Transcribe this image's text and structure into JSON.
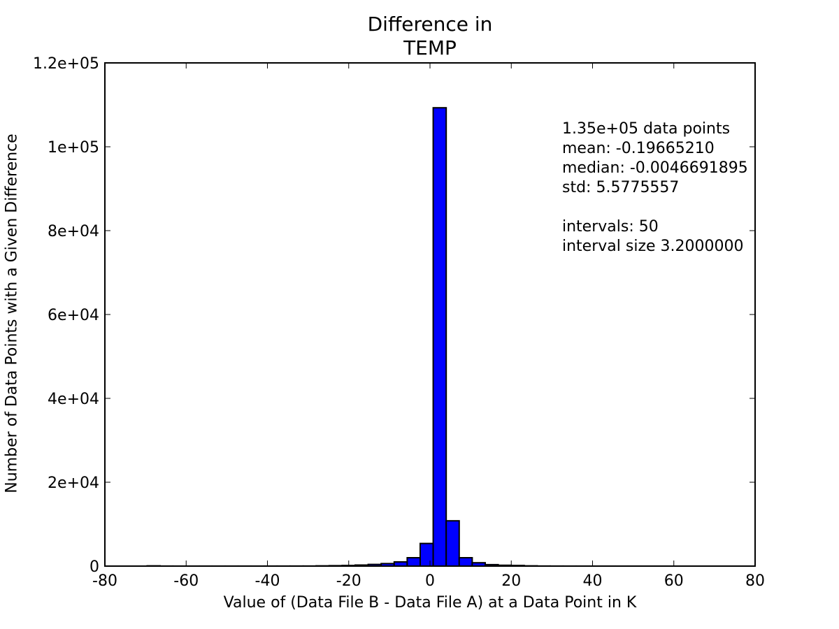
{
  "chart_data": {
    "type": "bar",
    "title": "Difference in\nTEMP",
    "title_lines": [
      "Difference in",
      "TEMP"
    ],
    "xlabel": "Value of (Data File B - Data File A) at a Data Point in K",
    "ylabel": "Number of Data Points with a Given Difference",
    "xlim": [
      -80,
      80
    ],
    "ylim": [
      0,
      120000
    ],
    "xticks": [
      -80,
      -60,
      -40,
      -20,
      0,
      20,
      40,
      60,
      80
    ],
    "xtick_labels": [
      "-80",
      "-60",
      "-40",
      "-20",
      "0",
      "20",
      "40",
      "60",
      "80"
    ],
    "yticks": [
      0,
      20000,
      40000,
      60000,
      80000,
      100000,
      120000
    ],
    "ytick_labels": [
      "0",
      "2e+04",
      "4e+04",
      "6e+04",
      "8e+04",
      "1e+05",
      "1.2e+05"
    ],
    "grid": false,
    "bar_color": "#0000ff",
    "edge_color": "#000000",
    "bin_width": 3.2,
    "bins": [
      {
        "x0": -69.61,
        "count": 60
      },
      {
        "x0": -66.41,
        "count": 10
      },
      {
        "x0": -63.21,
        "count": 5
      },
      {
        "x0": -60.01,
        "count": 5
      },
      {
        "x0": -56.81,
        "count": 5
      },
      {
        "x0": -53.61,
        "count": 5
      },
      {
        "x0": -50.41,
        "count": 5
      },
      {
        "x0": -47.21,
        "count": 5
      },
      {
        "x0": -44.01,
        "count": 5
      },
      {
        "x0": -40.81,
        "count": 10
      },
      {
        "x0": -37.61,
        "count": 10
      },
      {
        "x0": -34.41,
        "count": 15
      },
      {
        "x0": -31.21,
        "count": 20
      },
      {
        "x0": -28.01,
        "count": 60
      },
      {
        "x0": -24.81,
        "count": 100
      },
      {
        "x0": -21.61,
        "count": 150
      },
      {
        "x0": -18.41,
        "count": 250
      },
      {
        "x0": -15.21,
        "count": 400
      },
      {
        "x0": -12.01,
        "count": 600
      },
      {
        "x0": -8.81,
        "count": 1000
      },
      {
        "x0": -5.61,
        "count": 2000
      },
      {
        "x0": -2.41,
        "count": 5400
      },
      {
        "x0": 0.79,
        "count": 109300
      },
      {
        "x0": 3.99,
        "count": 10800
      },
      {
        "x0": 7.19,
        "count": 2000
      },
      {
        "x0": 10.39,
        "count": 800
      },
      {
        "x0": 13.59,
        "count": 350
      },
      {
        "x0": 16.79,
        "count": 200
      },
      {
        "x0": 19.99,
        "count": 150
      },
      {
        "x0": 23.19,
        "count": 60
      },
      {
        "x0": 26.39,
        "count": 20
      },
      {
        "x0": 29.59,
        "count": 10
      },
      {
        "x0": 32.79,
        "count": 5
      },
      {
        "x0": 35.99,
        "count": 5
      },
      {
        "x0": 39.19,
        "count": 2
      },
      {
        "x0": 42.39,
        "count": 2
      },
      {
        "x0": 45.59,
        "count": 1
      },
      {
        "x0": 48.79,
        "count": 1
      },
      {
        "x0": 51.99,
        "count": 1
      },
      {
        "x0": 55.19,
        "count": 1
      },
      {
        "x0": 58.39,
        "count": 0
      },
      {
        "x0": 61.59,
        "count": 0
      },
      {
        "x0": 64.79,
        "count": 0
      },
      {
        "x0": 67.99,
        "count": 0
      },
      {
        "x0": 71.19,
        "count": 0
      },
      {
        "x0": 74.39,
        "count": 0
      },
      {
        "x0": 77.59,
        "count": 0
      },
      {
        "x0": 80.79,
        "count": 0
      },
      {
        "x0": 83.99,
        "count": 0
      },
      {
        "x0": 87.19,
        "count": 0
      }
    ],
    "annotation_lines": [
      "1.35e+05 data points",
      "mean: -0.19665210",
      "median: -0.0046691895",
      "std: 5.5775557",
      "",
      "intervals: 50",
      "interval size 3.2000000"
    ]
  },
  "title": {
    "line1": "Difference in",
    "line2": "TEMP"
  },
  "axes": {
    "xlabel": "Value of (Data File B - Data File A) at a Data Point in K",
    "ylabel": "Number of Data Points with a Given Difference"
  },
  "stats": {
    "count": "1.35e+05 data points",
    "mean": "mean: -0.19665210",
    "median": "median: -0.0046691895",
    "std": "std: 5.5775557",
    "intervals": "intervals: 50",
    "interval_size": "interval size 3.2000000"
  }
}
